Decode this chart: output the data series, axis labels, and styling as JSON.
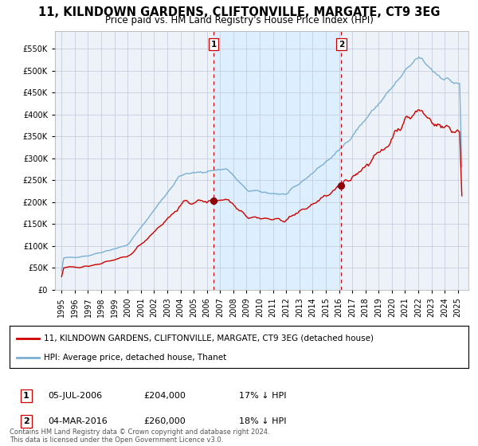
{
  "title": "11, KILNDOWN GARDENS, CLIFTONVILLE, MARGATE, CT9 3EG",
  "subtitle": "Price paid vs. HM Land Registry's House Price Index (HPI)",
  "legend_line1": "11, KILNDOWN GARDENS, CLIFTONVILLE, MARGATE, CT9 3EG (detached house)",
  "legend_line2": "HPI: Average price, detached house, Thanet",
  "annotation1_label": "1",
  "annotation1_date": "05-JUL-2006",
  "annotation1_price": "£204,000",
  "annotation1_hpi": "17% ↓ HPI",
  "annotation1_year": 2006.5,
  "annotation1_value": 204000,
  "annotation2_label": "2",
  "annotation2_date": "04-MAR-2016",
  "annotation2_price": "£260,000",
  "annotation2_hpi": "18% ↓ HPI",
  "annotation2_year": 2016.17,
  "annotation2_value": 260000,
  "yticks": [
    0,
    50000,
    100000,
    150000,
    200000,
    250000,
    300000,
    350000,
    400000,
    450000,
    500000,
    550000
  ],
  "xlim_start": 1994.5,
  "xlim_end": 2025.8,
  "ylim_min": 0,
  "ylim_max": 590000,
  "red_line_color": "#cc0000",
  "blue_line_color": "#7bafd4",
  "fill_color": "#ddeeff",
  "background_color": "#edf2f8",
  "grid_color": "#c0c8d8",
  "vline_color": "#cc0000",
  "footer_text": "Contains HM Land Registry data © Crown copyright and database right 2024.\nThis data is licensed under the Open Government Licence v3.0.",
  "title_fontsize": 10.5,
  "subtitle_fontsize": 8.5,
  "tick_fontsize": 7,
  "legend_fontsize": 7.5,
  "footer_fontsize": 6
}
